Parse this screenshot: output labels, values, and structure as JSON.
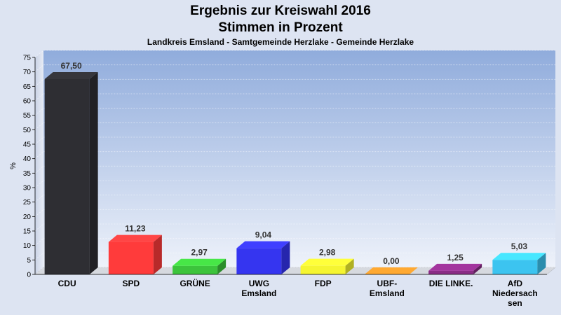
{
  "chart_data": {
    "type": "bar",
    "title_line1": "Ergebnis zur Kreiswahl 2016",
    "title_line2": "Stimmen in Prozent",
    "subtitle": "Landkreis Emsland - Samtgemeinde Herzlake - Gemeinde Herzlake",
    "ylabel": "%",
    "ylim": [
      0,
      75
    ],
    "ytick_step": 5,
    "grid": true,
    "categories": [
      [
        "CDU"
      ],
      [
        "SPD"
      ],
      [
        "GRÜNE"
      ],
      [
        "UWG",
        "Emsland"
      ],
      [
        "FDP"
      ],
      [
        "UBF-",
        "Emsland"
      ],
      [
        "DIE LINKE."
      ],
      [
        "AfD",
        "Niedersach",
        "sen"
      ]
    ],
    "values": [
      67.5,
      11.23,
      2.97,
      9.04,
      2.98,
      0.0,
      1.25,
      5.03
    ],
    "value_labels": [
      "67,50",
      "11,23",
      "2,97",
      "9,04",
      "2,98",
      "0,00",
      "1,25",
      "5,03"
    ],
    "colors": [
      "#2e2e33",
      "#ff3b3b",
      "#3cc43c",
      "#3535f0",
      "#f5f531",
      "#f58f2a",
      "#8a2d86",
      "#3cc4f0"
    ]
  }
}
